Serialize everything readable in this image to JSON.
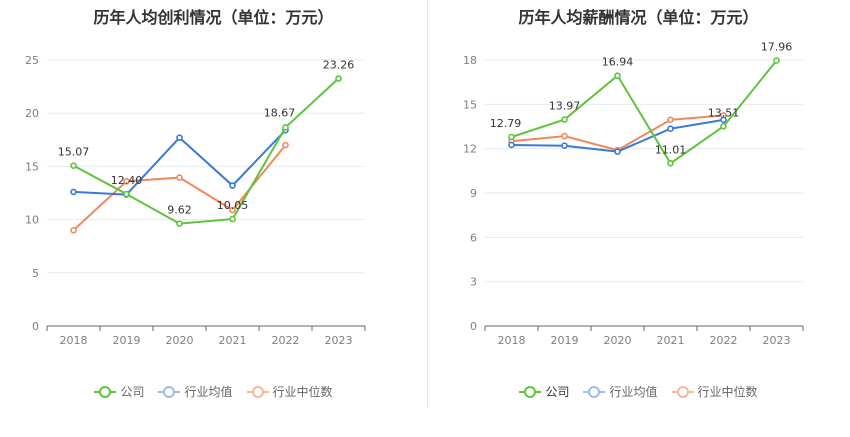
{
  "colors": {
    "company": "#5ec43c",
    "industry_avg": "#3a78d8",
    "industry_median": "#f08a5d",
    "grid": "#e6e9f0",
    "axis": "#666666"
  },
  "chart_data": [
    {
      "type": "line",
      "title": "历年人均创利情况（单位：万元）",
      "categories": [
        "2018",
        "2019",
        "2020",
        "2021",
        "2022",
        "2023"
      ],
      "ylim": [
        0,
        25
      ],
      "yticks": [
        0,
        5,
        10,
        15,
        20,
        25
      ],
      "series": [
        {
          "name": "公司",
          "key": "company",
          "values": [
            15.07,
            12.4,
            9.62,
            10.05,
            18.67,
            23.26
          ],
          "labels": [
            "15.07",
            "12.40",
            "9.62",
            "10.05",
            "18.67",
            "23.26"
          ]
        },
        {
          "name": "行业均值",
          "key": "industry_avg",
          "values": [
            12.6,
            12.35,
            17.7,
            13.2,
            18.4,
            null
          ]
        },
        {
          "name": "行业中位数",
          "key": "industry_median",
          "values": [
            9.0,
            13.6,
            13.95,
            10.9,
            17.0,
            null
          ]
        }
      ],
      "legend": "bottom"
    },
    {
      "type": "line",
      "title": "历年人均薪酬情况（单位：万元）",
      "categories": [
        "2018",
        "2019",
        "2020",
        "2021",
        "2022",
        "2023"
      ],
      "ylim": [
        0,
        18
      ],
      "yticks": [
        0,
        3,
        6,
        9,
        12,
        15,
        18
      ],
      "series": [
        {
          "name": "公司",
          "key": "company",
          "values": [
            12.79,
            13.97,
            16.94,
            11.01,
            13.51,
            17.96
          ],
          "labels": [
            "12.79",
            "13.97",
            "16.94",
            "11.01",
            "13.51",
            "17.96"
          ]
        },
        {
          "name": "行业均值",
          "key": "industry_avg",
          "values": [
            12.25,
            12.2,
            11.8,
            13.35,
            13.95,
            null
          ]
        },
        {
          "name": "行业中位数",
          "key": "industry_median",
          "values": [
            12.5,
            12.85,
            11.9,
            13.95,
            14.25,
            null
          ]
        }
      ],
      "legend": "bottom"
    }
  ]
}
